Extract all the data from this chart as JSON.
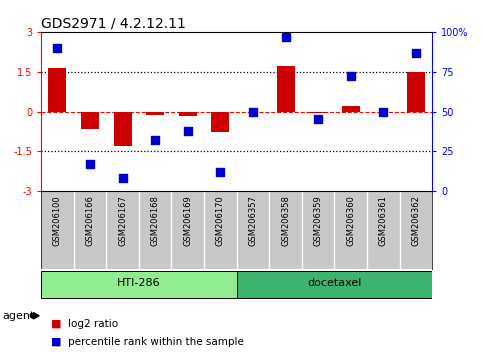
{
  "title": "GDS2971 / 4.2.12.11",
  "samples": [
    "GSM206100",
    "GSM206166",
    "GSM206167",
    "GSM206168",
    "GSM206169",
    "GSM206170",
    "GSM206357",
    "GSM206358",
    "GSM206359",
    "GSM206360",
    "GSM206361",
    "GSM206362"
  ],
  "log2_ratio": [
    1.65,
    -0.65,
    -1.3,
    -0.12,
    -0.18,
    -0.78,
    -0.02,
    1.72,
    -0.05,
    0.22,
    0.0,
    1.5
  ],
  "percentile": [
    90,
    17,
    8,
    32,
    38,
    12,
    50,
    97,
    45,
    72,
    50,
    87
  ],
  "groups": [
    {
      "label": "HTI-286",
      "start": 0,
      "end": 6,
      "color": "#90EE90"
    },
    {
      "label": "docetaxel",
      "start": 6,
      "end": 12,
      "color": "#3CB371"
    }
  ],
  "ylim": [
    -3,
    3
  ],
  "yticks_left": [
    -3,
    -1.5,
    0,
    1.5,
    3
  ],
  "yticks_right": [
    0,
    25,
    50,
    75,
    100
  ],
  "hlines_dotted": [
    1.5,
    -1.5
  ],
  "hline_dashed_color": "red",
  "bar_color": "#CC0000",
  "dot_color": "#0000CC",
  "bar_width": 0.55,
  "dot_size": 35,
  "agent_label": "agent",
  "legend_items": [
    {
      "label": "log2 ratio",
      "color": "#CC0000"
    },
    {
      "label": "percentile rank within the sample",
      "color": "#0000CC"
    }
  ],
  "label_bg": "#C8C8C8",
  "title_fontsize": 10,
  "tick_fontsize": 7,
  "sample_fontsize": 6,
  "group_fontsize": 8
}
